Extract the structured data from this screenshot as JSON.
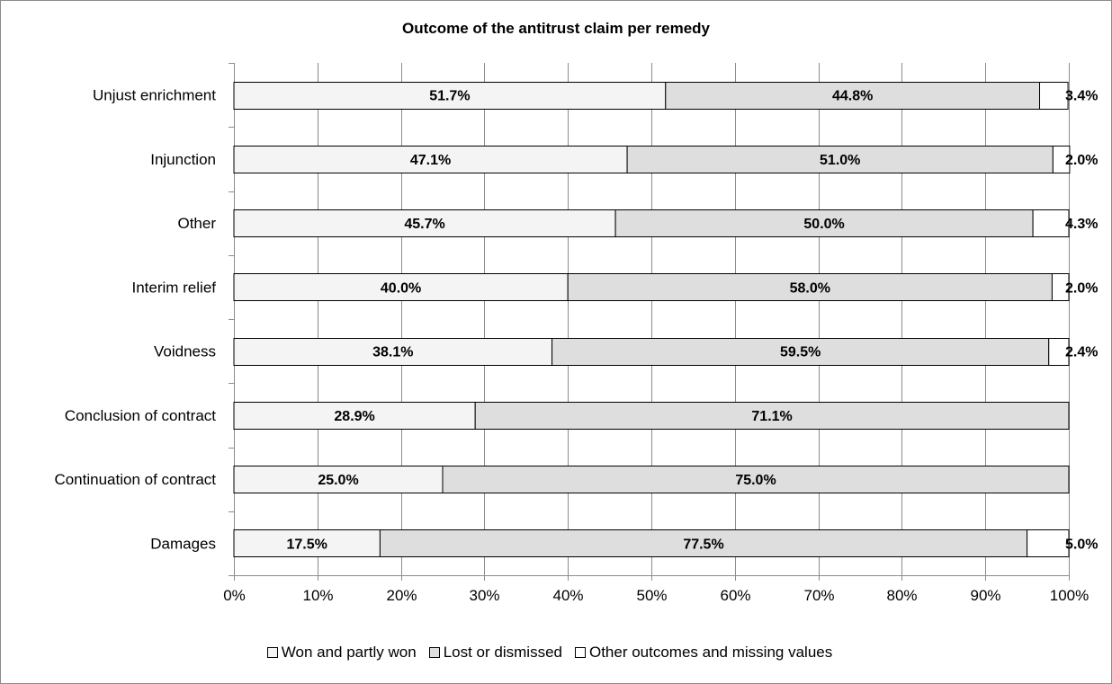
{
  "chart_data": {
    "type": "bar",
    "orientation": "horizontal",
    "stacked": "percent",
    "title": "Outcome of the antitrust claim per remedy",
    "categories": [
      "Unjust enrichment",
      "Injunction",
      "Other",
      "Interim relief",
      "Voidness",
      "Conclusion of contract",
      "Continuation of contract",
      "Damages"
    ],
    "series": [
      {
        "name": "Won and partly won",
        "color": "#f4f4f4",
        "values": [
          51.7,
          47.1,
          45.7,
          40.0,
          38.1,
          28.9,
          25.0,
          17.5
        ],
        "labels": [
          "51.7%",
          "47.1%",
          "45.7%",
          "40.0%",
          "38.1%",
          "28.9%",
          "25.0%",
          "17.5%"
        ]
      },
      {
        "name": "Lost or dismissed",
        "color": "#dedede",
        "values": [
          44.8,
          51.0,
          50.0,
          58.0,
          59.5,
          71.1,
          75.0,
          77.5
        ],
        "labels": [
          "44.8%",
          "51.0%",
          "50.0%",
          "58.0%",
          "59.5%",
          "71.1%",
          "75.0%",
          "77.5%"
        ]
      },
      {
        "name": "Other outcomes and missing values",
        "color": "#ffffff",
        "values": [
          3.4,
          2.0,
          4.3,
          2.0,
          2.4,
          0,
          0,
          5.0
        ],
        "labels": [
          "3.4%",
          "2.0%",
          "4.3%",
          "2.0%",
          "2.4%",
          "",
          "",
          "5.0%"
        ]
      }
    ],
    "xlim": [
      0,
      100
    ],
    "xticks": [
      "0%",
      "10%",
      "20%",
      "30%",
      "40%",
      "50%",
      "60%",
      "70%",
      "80%",
      "90%",
      "100%"
    ],
    "grid": true,
    "legend_position": "bottom"
  }
}
